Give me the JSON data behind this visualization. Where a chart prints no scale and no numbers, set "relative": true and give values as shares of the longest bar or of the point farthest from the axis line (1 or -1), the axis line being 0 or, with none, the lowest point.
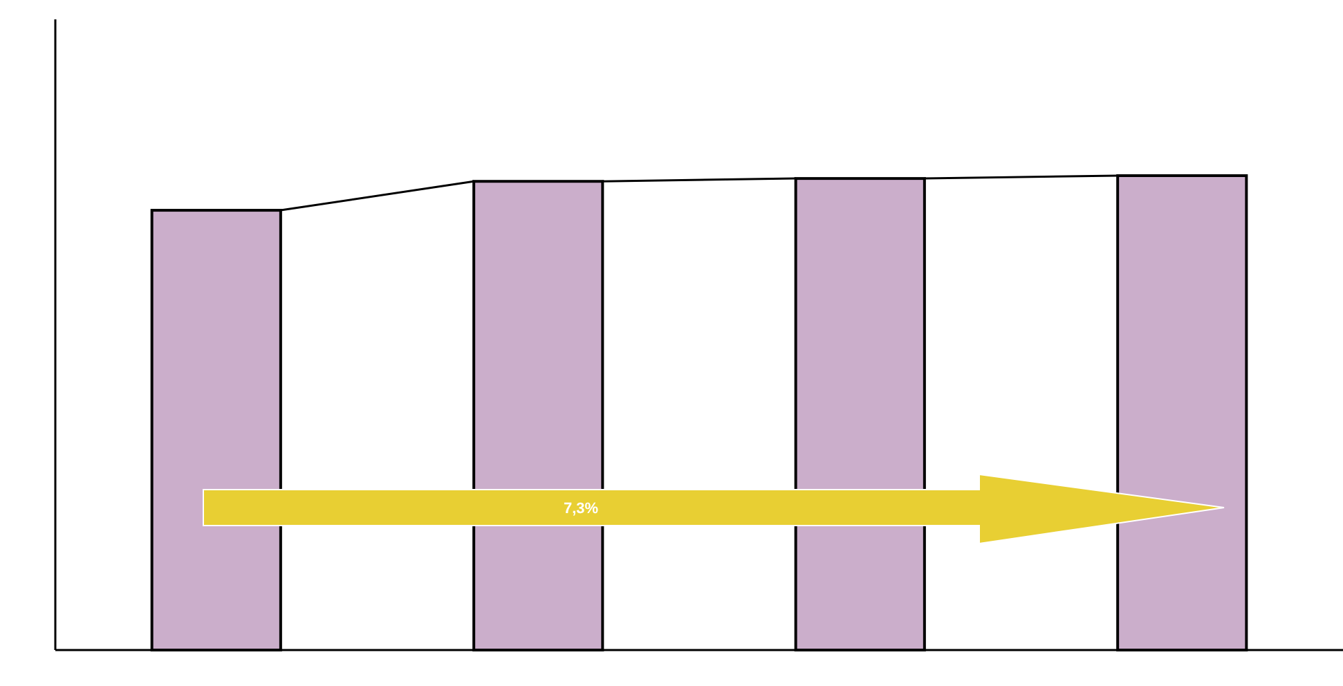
{
  "chart_data": {
    "type": "bar",
    "relative": true,
    "categories": [
      null,
      null,
      null,
      null
    ],
    "values": [
      0.927,
      0.988,
      0.994,
      1
    ],
    "color": "#cbaecb",
    "annotations": [
      "7,3%"
    ]
  }
}
